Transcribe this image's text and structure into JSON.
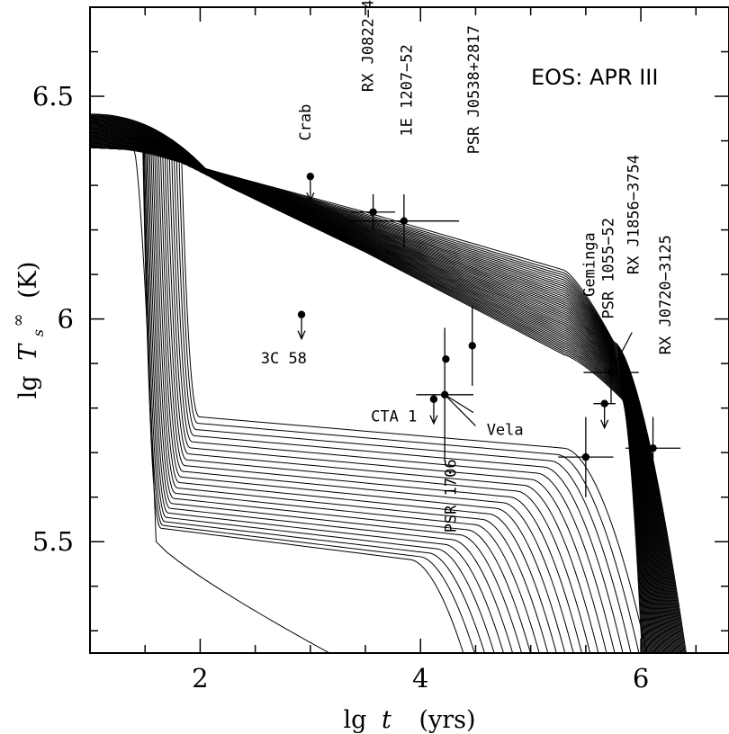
{
  "chart_data": {
    "type": "line",
    "title": "",
    "xlabel": "lg t   (yrs)",
    "ylabel": "lg T_s^∞ (K)",
    "xlabel_parts": {
      "lg": "lg",
      "var": "t",
      "unit": "(yrs)"
    },
    "ylabel_parts": {
      "lg": "lg",
      "var": "T",
      "sub": "s",
      "sup": "∞",
      "unit": "(K)"
    },
    "xlim": [
      1.0,
      6.8
    ],
    "ylim": [
      5.25,
      6.7
    ],
    "xticks": [
      2,
      4,
      6
    ],
    "xtick_labels": [
      "2",
      "4",
      "6"
    ],
    "yticks": [
      5.5,
      6,
      6.5
    ],
    "ytick_labels": [
      "5.5",
      "6",
      "6.5"
    ],
    "grid": false,
    "annotation_box": "EOS: APR III",
    "curves": {
      "description_free": true,
      "slow_family": {
        "count": 45,
        "start_x": 1.0,
        "start_y_range": [
          6.385,
          6.46
        ],
        "plateau_x": 5.3,
        "plateau_y_top": 6.11,
        "plateau_y_bottom": 5.92,
        "drop_x_range": [
          5.85,
          6.45
        ]
      },
      "fast_family": {
        "count": 22,
        "onset_x_range": [
          1.48,
          1.83
        ],
        "floor_y_range": [
          5.53,
          5.78
        ],
        "knee_x_range": [
          3.9,
          5.3
        ]
      }
    },
    "observations": [
      {
        "label": "Crab",
        "x": 3.0,
        "y": 6.32,
        "xerr": [
          0,
          0
        ],
        "yerr": [
          0,
          0
        ],
        "upper_limit": true
      },
      {
        "label": "RX J0822−43",
        "x": 3.57,
        "y": 6.24,
        "xerr": [
          0.2,
          0.2
        ],
        "yerr": [
          0.04,
          0.04
        ],
        "upper_limit": false
      },
      {
        "label": "1E 1207−52",
        "x": 3.85,
        "y": 6.22,
        "xerr": [
          0.5,
          0.5
        ],
        "yerr": [
          0.06,
          0.06
        ],
        "upper_limit": false
      },
      {
        "label": "PSR J0538+2817",
        "x": 4.47,
        "y": 5.94,
        "xerr": [
          0,
          0
        ],
        "yerr": [
          0.09,
          0.09
        ],
        "upper_limit": false
      },
      {
        "label": "3C 58",
        "x": 2.92,
        "y": 6.01,
        "xerr": [
          0,
          0
        ],
        "yerr": [
          0,
          0
        ],
        "upper_limit": true
      },
      {
        "label": "",
        "x": 4.23,
        "y": 5.91,
        "xerr": [
          0,
          0
        ],
        "yerr": [
          0,
          0
        ],
        "upper_limit": false
      },
      {
        "label": "CTA 1",
        "x": 4.12,
        "y": 5.82,
        "xerr": [
          0,
          0
        ],
        "yerr": [
          0,
          0
        ],
        "upper_limit": true
      },
      {
        "label": "Vela",
        "x": 4.22,
        "y": 5.83,
        "xerr": [
          0.26,
          0.26
        ],
        "yerr": [
          0.15,
          0.15
        ],
        "upper_limit": false
      },
      {
        "label": "Geminga",
        "x": 5.67,
        "y": 5.81,
        "xerr": [
          0.1,
          0.1
        ],
        "yerr": [
          0,
          0
        ],
        "upper_limit": true
      },
      {
        "label": "PSR 1055−52",
        "x": 5.73,
        "y": 5.88,
        "xerr": [
          0.25,
          0.25
        ],
        "yerr": [
          0.07,
          0.07
        ],
        "upper_limit": false
      },
      {
        "label": "RX J1856−3754",
        "x": 5.5,
        "y": 5.69,
        "xerr": [
          0.25,
          0.25
        ],
        "yerr": [
          0.09,
          0.09
        ],
        "upper_limit": false
      },
      {
        "label": "RX J0720−3125",
        "x": 6.11,
        "y": 5.71,
        "xerr": [
          0.25,
          0.25
        ],
        "yerr": [
          0.07,
          0.07
        ],
        "upper_limit": false
      },
      {
        "label": "PSR 1706",
        "x": 4.23,
        "y": 5.25,
        "xerr": [
          0,
          0
        ],
        "yerr": [
          0,
          0
        ],
        "upper_limit": false
      }
    ],
    "labels": [
      {
        "text": "Crab",
        "x": 3.0,
        "y": 6.4,
        "rotate": -90
      },
      {
        "text": "RX J0822−43",
        "x": 3.57,
        "y": 6.51,
        "rotate": -90
      },
      {
        "text": "1E 1207−52",
        "x": 3.92,
        "y": 6.41,
        "rotate": -90
      },
      {
        "text": "PSR J0538+2817",
        "x": 4.53,
        "y": 6.37,
        "rotate": -90
      },
      {
        "text": "Geminga",
        "x": 5.58,
        "y": 6.05,
        "rotate": -90
      },
      {
        "text": "PSR 1055−52",
        "x": 5.75,
        "y": 6.0,
        "rotate": -90
      },
      {
        "text": "RX J1856−3754",
        "x": 5.98,
        "y": 6.1,
        "rotate": -90
      },
      {
        "text": "RX J0720−3125",
        "x": 6.27,
        "y": 5.92,
        "rotate": -90
      },
      {
        "text": "PSR 1706",
        "x": 4.32,
        "y": 5.52,
        "rotate": -90
      },
      {
        "text": "3C 58",
        "x": 2.55,
        "y": 5.9,
        "rotate": 0
      },
      {
        "text": "CTA 1",
        "x": 3.55,
        "y": 5.77,
        "rotate": 0
      },
      {
        "text": "Vela",
        "x": 4.6,
        "y": 5.74,
        "rotate": 0
      }
    ]
  }
}
